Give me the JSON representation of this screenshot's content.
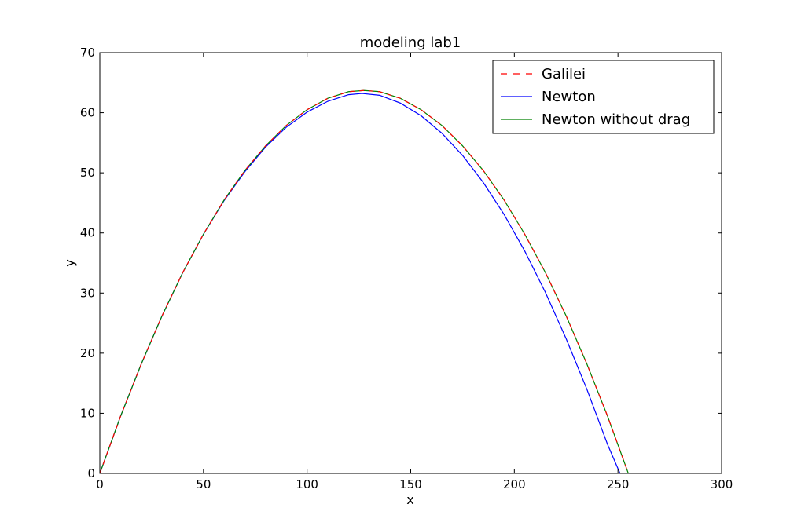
{
  "chart_data": {
    "type": "line",
    "title": "modeling lab1",
    "xlabel": "x",
    "ylabel": "y",
    "xlim": [
      0,
      300
    ],
    "ylim": [
      0,
      70
    ],
    "xticks": [
      "0",
      "50",
      "100",
      "150",
      "200",
      "250",
      "300"
    ],
    "yticks": [
      "0",
      "10",
      "20",
      "30",
      "40",
      "50",
      "60",
      "70"
    ],
    "grid": false,
    "legend_position": "top-right",
    "series": [
      {
        "name": "Galilei",
        "color": "#ff0000",
        "style": "dashed",
        "x": [
          0,
          10,
          20,
          30,
          40,
          50,
          60,
          70,
          80,
          90,
          100,
          110,
          120,
          127.5,
          135,
          145,
          155,
          165,
          175,
          185,
          195,
          205,
          215,
          225,
          235,
          245,
          255
        ],
        "y": [
          0,
          9.5,
          18.2,
          26.2,
          33.4,
          39.8,
          45.5,
          50.4,
          54.5,
          57.9,
          60.5,
          62.4,
          63.5,
          63.7,
          63.5,
          62.4,
          60.5,
          57.9,
          54.5,
          50.4,
          45.5,
          39.8,
          33.4,
          26.2,
          18.2,
          9.5,
          0
        ]
      },
      {
        "name": "Newton",
        "color": "#0000ff",
        "style": "solid",
        "x": [
          0,
          10,
          20,
          30,
          40,
          50,
          60,
          70,
          80,
          90,
          100,
          110,
          120,
          126.5,
          135,
          145,
          155,
          165,
          175,
          185,
          195,
          205,
          215,
          225,
          235,
          245,
          251
        ],
        "y": [
          0,
          9.5,
          18.2,
          26.2,
          33.4,
          39.8,
          45.4,
          50.2,
          54.3,
          57.6,
          60.1,
          61.9,
          63.0,
          63.2,
          62.9,
          61.6,
          59.5,
          56.6,
          52.9,
          48.4,
          43.1,
          37.0,
          30.1,
          22.4,
          14.0,
          4.8,
          0
        ]
      },
      {
        "name": "Newton without drag",
        "color": "#008000",
        "style": "solid",
        "x": [
          0,
          10,
          20,
          30,
          40,
          50,
          60,
          70,
          80,
          90,
          100,
          110,
          120,
          127.5,
          135,
          145,
          155,
          165,
          175,
          185,
          195,
          205,
          215,
          225,
          235,
          245,
          255
        ],
        "y": [
          0,
          9.5,
          18.2,
          26.2,
          33.4,
          39.8,
          45.5,
          50.4,
          54.5,
          57.9,
          60.5,
          62.4,
          63.5,
          63.7,
          63.5,
          62.4,
          60.5,
          57.9,
          54.5,
          50.4,
          45.5,
          39.8,
          33.4,
          26.2,
          18.2,
          9.5,
          0
        ]
      }
    ]
  }
}
